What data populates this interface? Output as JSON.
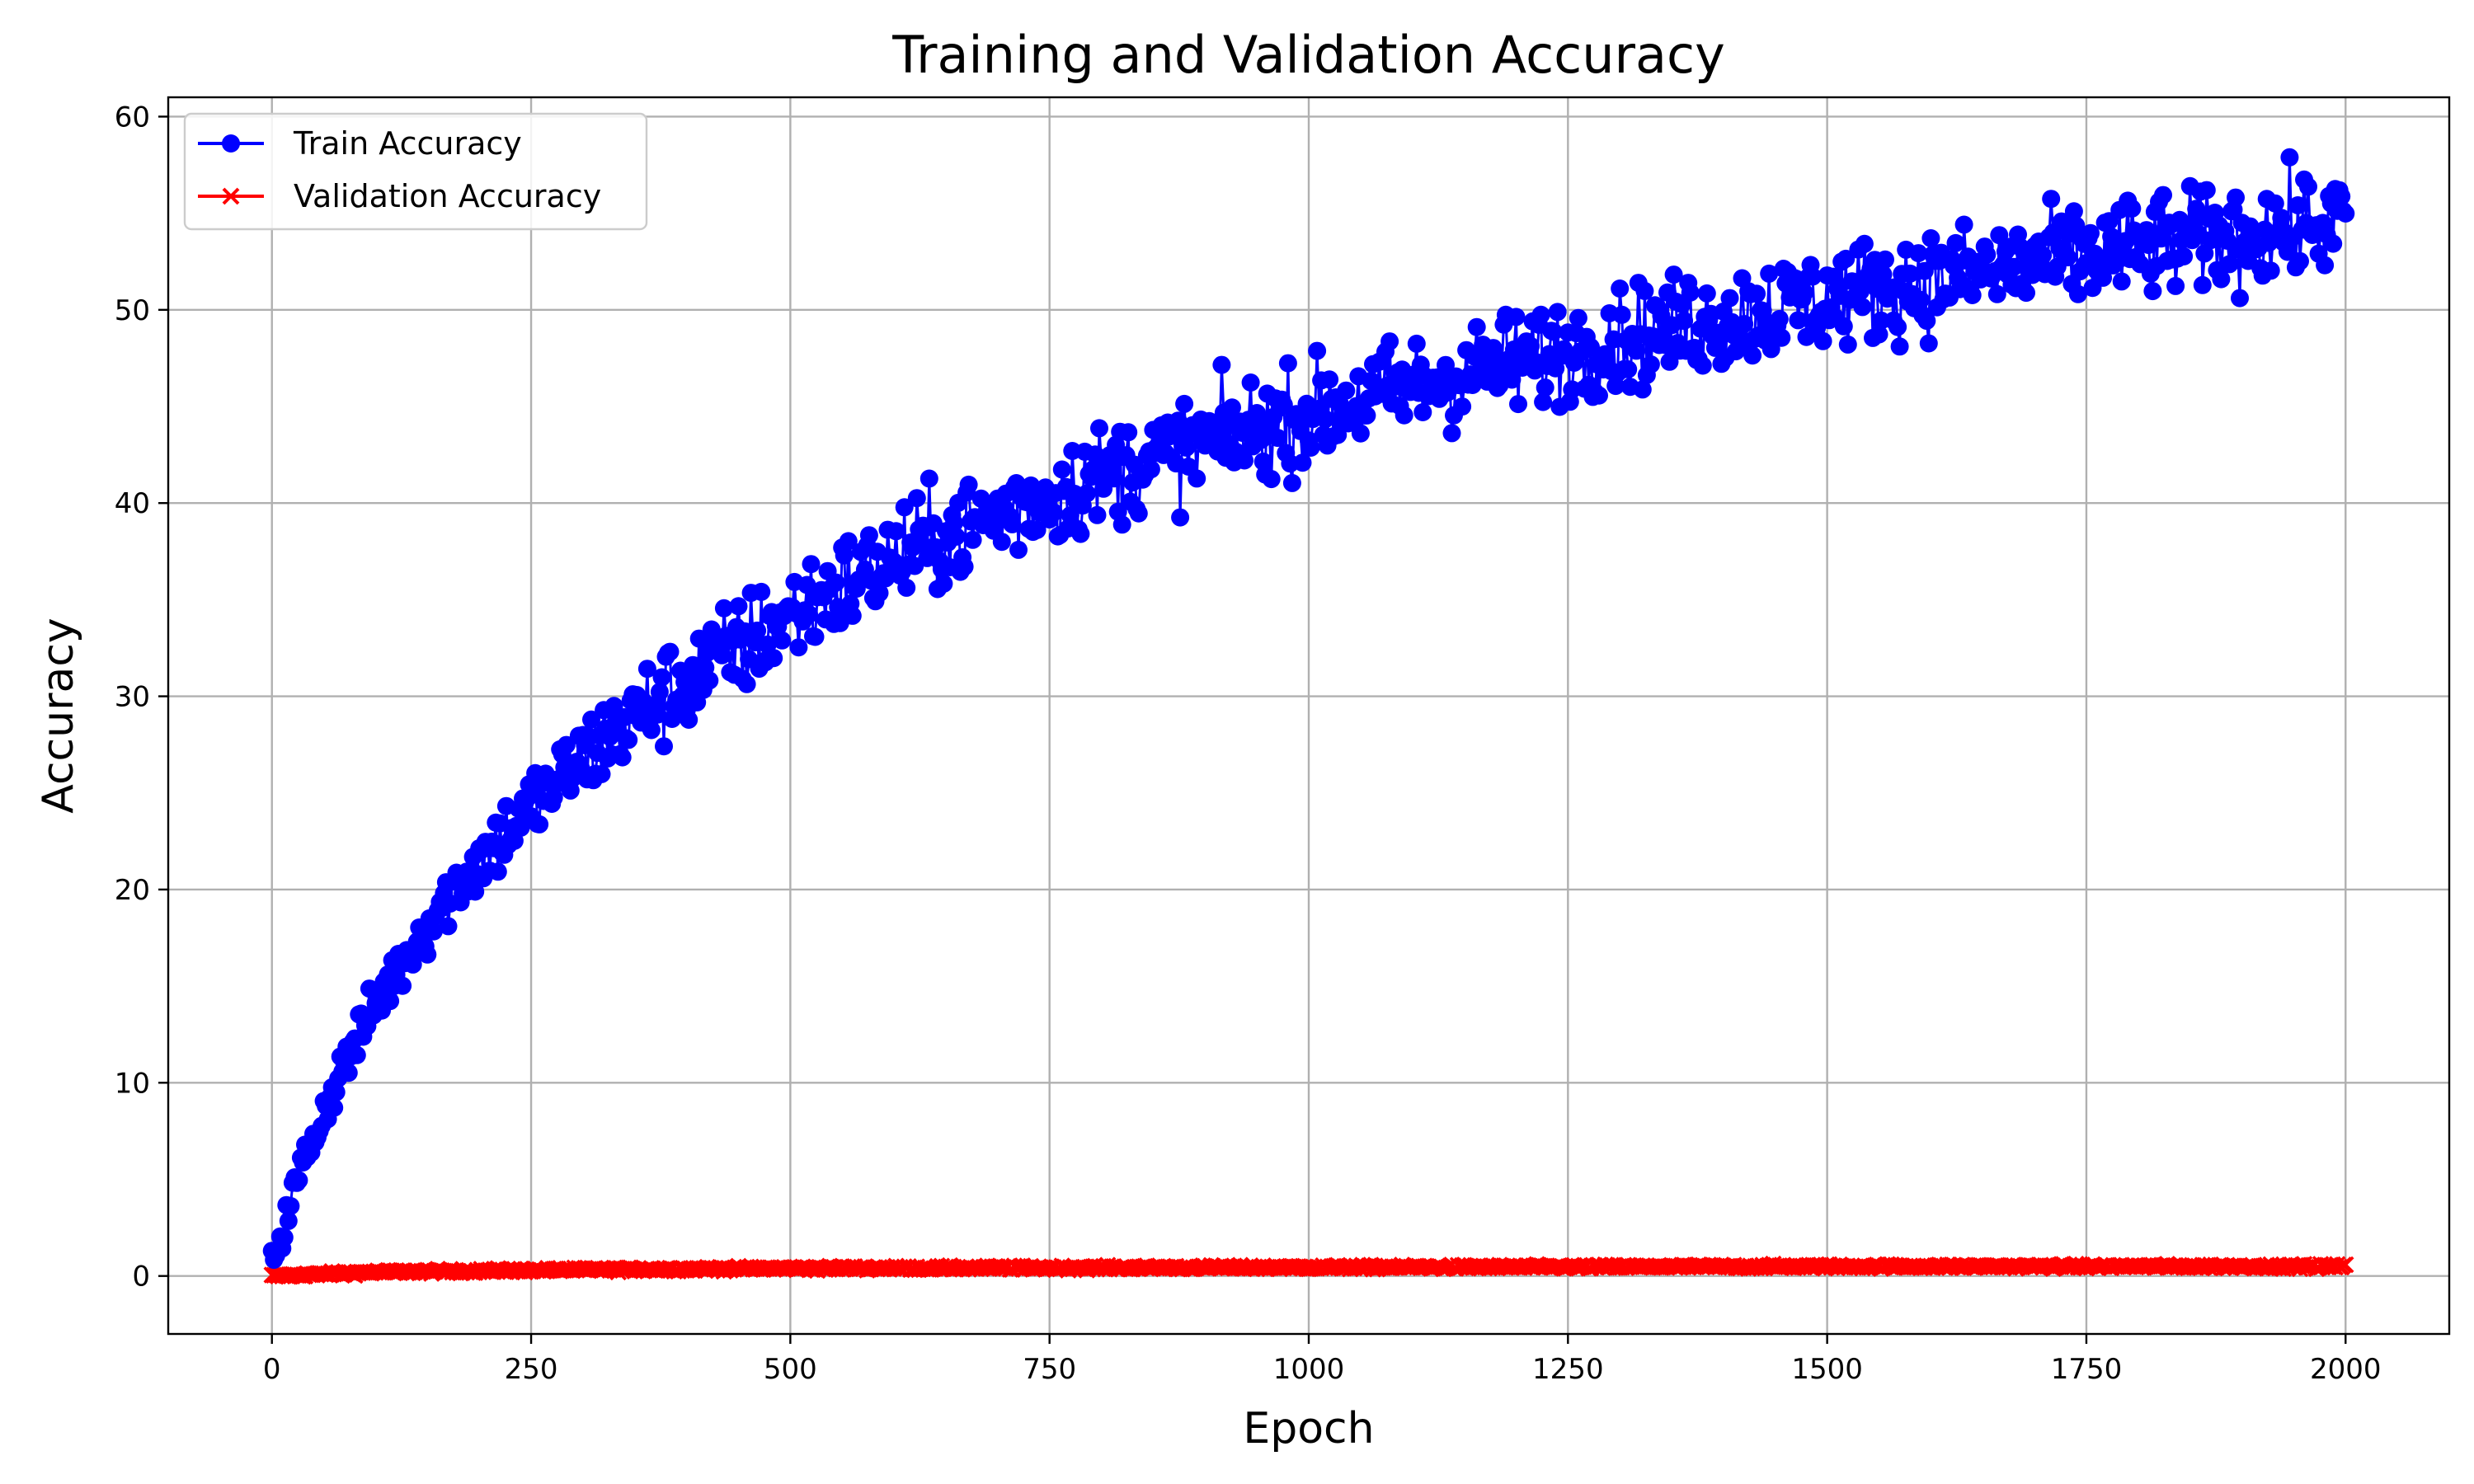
{
  "chart_data": {
    "type": "line",
    "title": "Training and Validation Accuracy",
    "xlabel": "Epoch",
    "ylabel": "Accuracy",
    "xlim": [
      -100,
      2100
    ],
    "ylim": [
      -3,
      61
    ],
    "xticks": [
      0,
      250,
      500,
      750,
      1000,
      1250,
      1500,
      1750,
      2000
    ],
    "yticks": [
      0,
      10,
      20,
      30,
      40,
      50,
      60
    ],
    "grid": true,
    "legend_position": "upper-left",
    "series": [
      {
        "name": "Train Accuracy",
        "color": "#0000ff",
        "marker": "circle",
        "x": [
          0,
          10,
          20,
          30,
          40,
          50,
          60,
          70,
          80,
          90,
          100,
          125,
          150,
          175,
          200,
          250,
          300,
          350,
          400,
          450,
          500,
          600,
          700,
          750,
          800,
          900,
          1000,
          1100,
          1200,
          1250,
          1300,
          1400,
          1500,
          1600,
          1700,
          1750,
          1800,
          1900,
          2000
        ],
        "y": [
          1.0,
          2.2,
          4.2,
          5.8,
          7.2,
          8.5,
          9.8,
          11.0,
          12.0,
          13.0,
          14.0,
          16.2,
          18.2,
          20.0,
          21.5,
          24.3,
          26.8,
          28.9,
          30.8,
          32.5,
          34.2,
          37.1,
          39.4,
          40.4,
          41.4,
          43.1,
          44.6,
          46.0,
          47.3,
          47.9,
          48.5,
          49.6,
          50.6,
          51.5,
          52.4,
          52.8,
          53.2,
          53.9,
          54.6
        ],
        "noise": 1.3
      },
      {
        "name": "Validation Accuracy",
        "color": "#ff0000",
        "marker": "x",
        "x": [
          0,
          100,
          250,
          500,
          1000,
          1500,
          2000
        ],
        "y": [
          0.0,
          0.2,
          0.3,
          0.4,
          0.45,
          0.5,
          0.5
        ],
        "noise": 0.05
      }
    ]
  }
}
